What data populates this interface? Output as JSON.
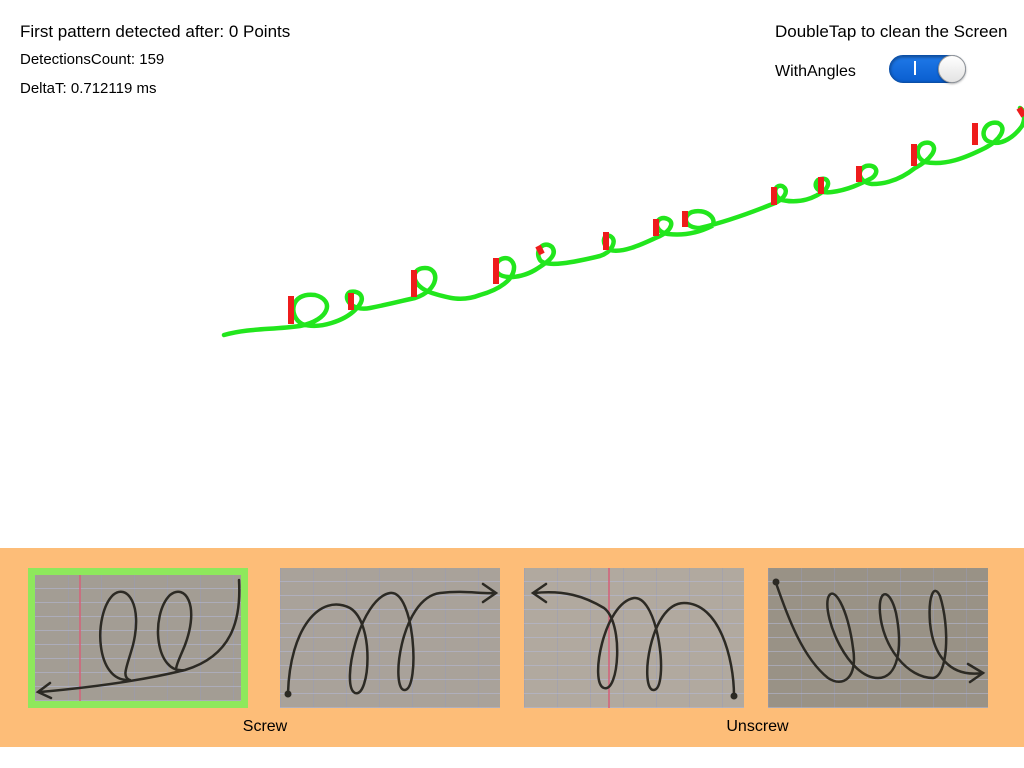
{
  "status": {
    "first_pattern": "First pattern detected after: 0 Points",
    "detections_count": "DetectionsCount: 159",
    "delta_t": "DeltaT: 0.712119 ms"
  },
  "hint": "DoubleTap to clean the Screen",
  "with_angles": {
    "label": "WithAngles",
    "on": true
  },
  "colors": {
    "stroke": "#22e61d",
    "detection": "#ee1c1c",
    "panel": "#fdbd78",
    "selected_border": "#8ee85c",
    "toggle_on": "#1f79e8"
  },
  "patterns": [
    {
      "name": "screw-loops-left-arrow",
      "selected": true
    },
    {
      "name": "screw-loops-right-arrow",
      "selected": false
    },
    {
      "name": "unscrew-loops-left-arrow",
      "selected": false
    },
    {
      "name": "unscrew-loops-right-arrow",
      "selected": false
    }
  ],
  "captions": {
    "screw": "Screw",
    "unscrew": "Unscrew"
  }
}
